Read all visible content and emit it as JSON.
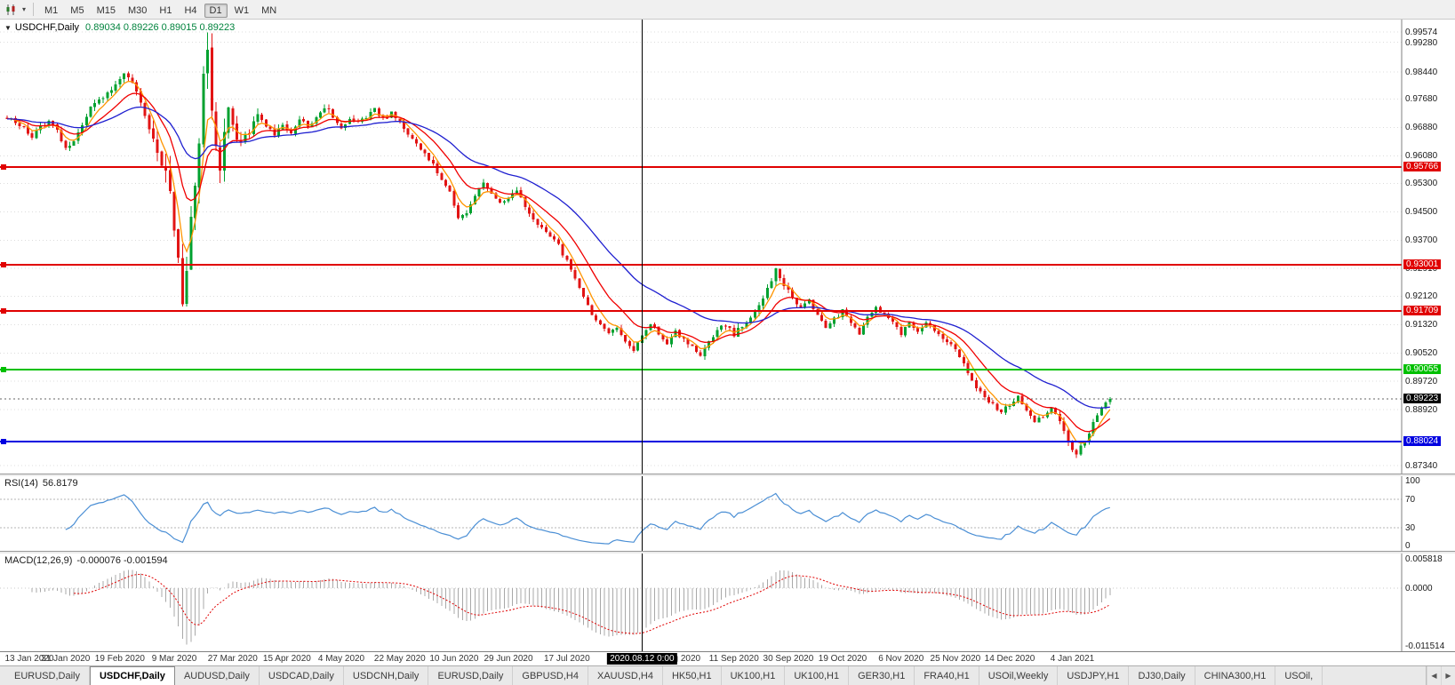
{
  "icons": {
    "one_click": "▼",
    "caret_down": "▾",
    "tab_scroll_left": "◀",
    "tab_scroll_right": "▶"
  },
  "toolbar": {
    "timeframes": [
      {
        "label": "M1",
        "active": false
      },
      {
        "label": "M5",
        "active": false
      },
      {
        "label": "M15",
        "active": false
      },
      {
        "label": "M30",
        "active": false
      },
      {
        "label": "H1",
        "active": false
      },
      {
        "label": "H4",
        "active": false
      },
      {
        "label": "D1",
        "active": true
      },
      {
        "label": "W1",
        "active": false
      },
      {
        "label": "MN",
        "active": false
      }
    ]
  },
  "chart": {
    "symbol_title": "USDCHF,Daily",
    "ohlc": "0.89034 0.89226 0.89015 0.89223"
  },
  "chart_data": {
    "type": "candlestick",
    "symbol": "USDCHF",
    "timeframe": "Daily",
    "bars": 265,
    "price_range": [
      0.8712,
      0.9992
    ],
    "close_anchors": [
      [
        0,
        0.9715
      ],
      [
        2,
        0.97
      ],
      [
        4,
        0.9685
      ],
      [
        6,
        0.9665
      ],
      [
        8,
        0.969
      ],
      [
        10,
        0.9705
      ],
      [
        12,
        0.968
      ],
      [
        14,
        0.963
      ],
      [
        16,
        0.9655
      ],
      [
        18,
        0.97
      ],
      [
        20,
        0.974
      ],
      [
        22,
        0.9765
      ],
      [
        24,
        0.978
      ],
      [
        26,
        0.981
      ],
      [
        28,
        0.984
      ],
      [
        30,
        0.9815
      ],
      [
        32,
        0.9755
      ],
      [
        34,
        0.969
      ],
      [
        36,
        0.963
      ],
      [
        38,
        0.9555
      ],
      [
        40,
        0.942
      ],
      [
        41,
        0.932
      ],
      [
        42,
        0.9185
      ],
      [
        43,
        0.929
      ],
      [
        44,
        0.942
      ],
      [
        45,
        0.952
      ],
      [
        46,
        0.965
      ],
      [
        47,
        0.982
      ],
      [
        48,
        0.9885
      ],
      [
        49,
        0.975
      ],
      [
        50,
        0.963
      ],
      [
        51,
        0.956
      ],
      [
        52,
        0.968
      ],
      [
        53,
        0.976
      ],
      [
        54,
        0.969
      ],
      [
        56,
        0.964
      ],
      [
        58,
        0.968
      ],
      [
        60,
        0.972
      ],
      [
        62,
        0.969
      ],
      [
        64,
        0.9665
      ],
      [
        66,
        0.9695
      ],
      [
        68,
        0.967
      ],
      [
        70,
        0.971
      ],
      [
        72,
        0.969
      ],
      [
        74,
        0.972
      ],
      [
        76,
        0.9745
      ],
      [
        78,
        0.972
      ],
      [
        80,
        0.969
      ],
      [
        82,
        0.9715
      ],
      [
        84,
        0.97
      ],
      [
        86,
        0.972
      ],
      [
        88,
        0.974
      ],
      [
        90,
        0.971
      ],
      [
        92,
        0.973
      ],
      [
        94,
        0.97
      ],
      [
        96,
        0.967
      ],
      [
        98,
        0.964
      ],
      [
        100,
        0.961
      ],
      [
        102,
        0.958
      ],
      [
        104,
        0.9545
      ],
      [
        106,
        0.9505
      ],
      [
        108,
        0.943
      ],
      [
        110,
        0.945
      ],
      [
        112,
        0.95
      ],
      [
        114,
        0.953
      ],
      [
        116,
        0.9505
      ],
      [
        118,
        0.947
      ],
      [
        120,
        0.949
      ],
      [
        122,
        0.9515
      ],
      [
        124,
        0.9465
      ],
      [
        126,
        0.9425
      ],
      [
        128,
        0.9405
      ],
      [
        130,
        0.9385
      ],
      [
        132,
        0.9355
      ],
      [
        134,
        0.931
      ],
      [
        136,
        0.926
      ],
      [
        138,
        0.921
      ],
      [
        140,
        0.9165
      ],
      [
        142,
        0.9135
      ],
      [
        144,
        0.911
      ],
      [
        146,
        0.9125
      ],
      [
        148,
        0.9085
      ],
      [
        150,
        0.9055
      ],
      [
        152,
        0.9105
      ],
      [
        154,
        0.9135
      ],
      [
        156,
        0.9105
      ],
      [
        158,
        0.908
      ],
      [
        160,
        0.911
      ],
      [
        162,
        0.909
      ],
      [
        164,
        0.9065
      ],
      [
        166,
        0.9045
      ],
      [
        168,
        0.9085
      ],
      [
        170,
        0.911
      ],
      [
        172,
        0.9135
      ],
      [
        174,
        0.9105
      ],
      [
        176,
        0.9125
      ],
      [
        178,
        0.9155
      ],
      [
        180,
        0.9185
      ],
      [
        182,
        0.9235
      ],
      [
        184,
        0.929
      ],
      [
        186,
        0.9245
      ],
      [
        188,
        0.9205
      ],
      [
        190,
        0.9175
      ],
      [
        192,
        0.9205
      ],
      [
        194,
        0.9155
      ],
      [
        196,
        0.9125
      ],
      [
        198,
        0.9145
      ],
      [
        200,
        0.917
      ],
      [
        202,
        0.9135
      ],
      [
        204,
        0.9105
      ],
      [
        206,
        0.915
      ],
      [
        208,
        0.918
      ],
      [
        210,
        0.916
      ],
      [
        212,
        0.9135
      ],
      [
        214,
        0.9105
      ],
      [
        216,
        0.9135
      ],
      [
        218,
        0.911
      ],
      [
        220,
        0.914
      ],
      [
        222,
        0.9115
      ],
      [
        224,
        0.9095
      ],
      [
        226,
        0.9075
      ],
      [
        228,
        0.9045
      ],
      [
        230,
        0.9
      ],
      [
        232,
        0.8955
      ],
      [
        234,
        0.8925
      ],
      [
        236,
        0.8905
      ],
      [
        238,
        0.8885
      ],
      [
        240,
        0.8905
      ],
      [
        242,
        0.8925
      ],
      [
        244,
        0.8885
      ],
      [
        246,
        0.8855
      ],
      [
        248,
        0.8875
      ],
      [
        250,
        0.8895
      ],
      [
        252,
        0.8855
      ],
      [
        254,
        0.8805
      ],
      [
        256,
        0.8765
      ],
      [
        258,
        0.8805
      ],
      [
        260,
        0.8855
      ],
      [
        262,
        0.8895
      ],
      [
        264,
        0.89223
      ]
    ],
    "volatility_anchors": [
      [
        0,
        0.0013
      ],
      [
        30,
        0.0016
      ],
      [
        36,
        0.0035
      ],
      [
        40,
        0.0062
      ],
      [
        44,
        0.0068
      ],
      [
        48,
        0.0072
      ],
      [
        52,
        0.0052
      ],
      [
        56,
        0.003
      ],
      [
        62,
        0.002
      ],
      [
        70,
        0.0015
      ],
      [
        100,
        0.0014
      ],
      [
        130,
        0.0013
      ],
      [
        150,
        0.0013
      ],
      [
        182,
        0.0018
      ],
      [
        188,
        0.0016
      ],
      [
        200,
        0.0013
      ],
      [
        230,
        0.0013
      ],
      [
        250,
        0.0013
      ],
      [
        256,
        0.0017
      ],
      [
        264,
        0.0012
      ]
    ],
    "y_axis_labels": [
      "0.99574",
      "0.99280",
      "0.98440",
      "0.97680",
      "0.96880",
      "0.96080",
      "0.95300",
      "0.94500",
      "0.93700",
      "0.92910",
      "0.92120",
      "0.91320",
      "0.90520",
      "0.89720",
      "0.88920",
      "0.87340"
    ],
    "price_lines": [
      {
        "value": 0.95766,
        "label": "0.95766",
        "color": "#e00000"
      },
      {
        "value": 0.93001,
        "label": "0.93001",
        "color": "#e00000"
      },
      {
        "value": 0.91709,
        "label": "0.91709",
        "color": "#e00000"
      },
      {
        "value": 0.90055,
        "label": "0.90055",
        "color": "#00c000"
      },
      {
        "value": 0.88024,
        "label": "0.88024",
        "color": "#0000e0"
      }
    ],
    "current_price": {
      "value": 0.89223,
      "label": "0.89223"
    },
    "crosshair": {
      "index": 152,
      "label": "2020.08.12 0:00"
    },
    "x_ticks": [
      [
        0,
        "13 Jan 2020"
      ],
      [
        14,
        "31 Jan 2020"
      ],
      [
        27,
        "19 Feb 2020"
      ],
      [
        40,
        "9 Mar 2020"
      ],
      [
        54,
        "27 Mar 2020"
      ],
      [
        67,
        "15 Apr 2020"
      ],
      [
        80,
        "4 May 2020"
      ],
      [
        94,
        "22 May 2020"
      ],
      [
        107,
        "10 Jun 2020"
      ],
      [
        120,
        "29 Jun 2020"
      ],
      [
        134,
        "17 Jul 2020"
      ],
      [
        160,
        "24 Aug 2020"
      ],
      [
        174,
        "11 Sep 2020"
      ],
      [
        187,
        "30 Sep 2020"
      ],
      [
        200,
        "19 Oct 2020"
      ],
      [
        214,
        "6 Nov 2020"
      ],
      [
        227,
        "25 Nov 2020"
      ],
      [
        240,
        "14 Dec 2020"
      ],
      [
        255,
        "4 Jan 2021"
      ]
    ],
    "moving_averages": [
      {
        "type": "ema",
        "period": 5,
        "color": "#ff9500"
      },
      {
        "type": "ema",
        "period": 13,
        "color": "#f00000"
      },
      {
        "type": "ema",
        "period": 34,
        "color": "#1f1fd0"
      }
    ],
    "rsi": {
      "name": "RSI(14)",
      "value": "56.8179",
      "period": 14,
      "levels": [
        70,
        30
      ],
      "axis_labels": [
        100,
        70,
        30,
        0
      ],
      "color": "#4b8fd5"
    },
    "macd": {
      "name": "MACD(12,26,9)",
      "values": "-0.000076 -0.001594",
      "fast": 12,
      "slow": 26,
      "signal": 9,
      "range": [
        -0.0125,
        0.0068
      ],
      "axis_labels": [
        {
          "value": 0.005818,
          "label": "0.005818"
        },
        {
          "value": 0,
          "label": "0.0000"
        },
        {
          "value": -0.011514,
          "label": "-0.011514"
        }
      ],
      "hist_color": "#a8a8a8",
      "signal_color": "#e00000"
    }
  },
  "colors": {
    "up": "#00a12f",
    "down": "#e21414",
    "grid": "#dcdcdc",
    "background": "#ffffff"
  },
  "tabs": {
    "items": [
      {
        "label": "EURUSD,Daily",
        "active": false
      },
      {
        "label": "USDCHF,Daily",
        "active": true
      },
      {
        "label": "AUDUSD,Daily",
        "active": false
      },
      {
        "label": "USDCAD,Daily",
        "active": false
      },
      {
        "label": "USDCNH,Daily",
        "active": false
      },
      {
        "label": "EURUSD,Daily",
        "active": false
      },
      {
        "label": "GBPUSD,H4",
        "active": false
      },
      {
        "label": "XAUUSD,H4",
        "active": false
      },
      {
        "label": "HK50,H1",
        "active": false
      },
      {
        "label": "UK100,H1",
        "active": false
      },
      {
        "label": "UK100,H1",
        "active": false
      },
      {
        "label": "GER30,H1",
        "active": false
      },
      {
        "label": "FRA40,H1",
        "active": false
      },
      {
        "label": "USOil,Weekly",
        "active": false
      },
      {
        "label": "USDJPY,H1",
        "active": false
      },
      {
        "label": "DJ30,Daily",
        "active": false
      },
      {
        "label": "CHINA300,H1",
        "active": false
      },
      {
        "label": "USOil,",
        "active": false
      }
    ]
  }
}
